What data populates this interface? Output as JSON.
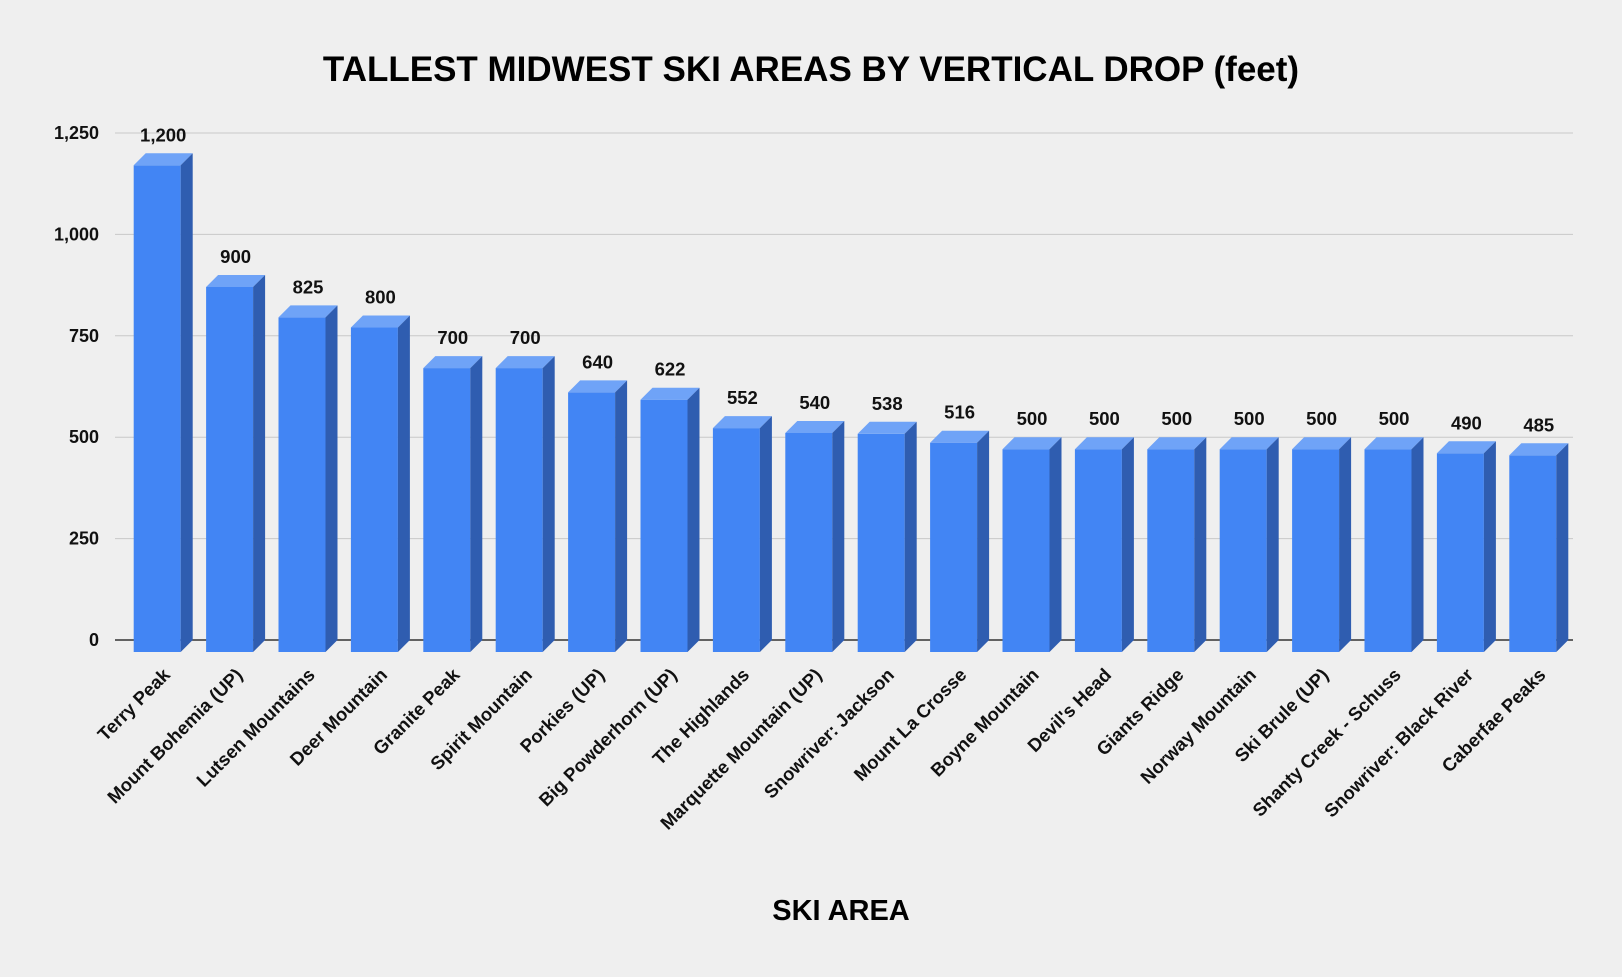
{
  "chart_data": {
    "type": "bar",
    "title": "TALLEST MIDWEST SKI AREAS BY VERTICAL DROP (feet)",
    "xlabel": "SKI AREA",
    "ylabel": "",
    "ylim": [
      0,
      1250
    ],
    "yticks": [
      "0",
      "250",
      "500",
      "750",
      "1,000",
      "1,250"
    ],
    "grid": true,
    "bar_style": "3d",
    "colors": {
      "background": "#efefef",
      "bar_front": "#4285f4",
      "bar_top": "#6fa3f7",
      "bar_side": "#2f5db0",
      "grid": "#c8c8c8",
      "axis": "#333333"
    },
    "categories": [
      "Terry Peak",
      "Mount Bohemia (UP)",
      "Lutsen Mountains",
      "Deer Mountain",
      "Granite Peak",
      "Spirit Mountain",
      "Porkies (UP)",
      "Big Powderhorn (UP)",
      "The Highlands",
      "Marquette Mountain (UP)",
      "Snowriver: Jackson",
      "Mount La Crosse",
      "Boyne Mountain",
      "Devil's Head",
      "Giants Ridge",
      "Norway Mountain",
      "Ski Brule (UP)",
      "Shanty Creek - Schuss",
      "Snowriver: Black River",
      "Caberfae Peaks"
    ],
    "values": [
      1200,
      900,
      825,
      800,
      700,
      700,
      640,
      622,
      552,
      540,
      538,
      516,
      500,
      500,
      500,
      500,
      500,
      500,
      490,
      485
    ],
    "data_labels": [
      "1,200",
      "900",
      "825",
      "800",
      "700",
      "700",
      "640",
      "622",
      "552",
      "540",
      "538",
      "516",
      "500",
      "500",
      "500",
      "500",
      "500",
      "500",
      "490",
      "485"
    ]
  }
}
